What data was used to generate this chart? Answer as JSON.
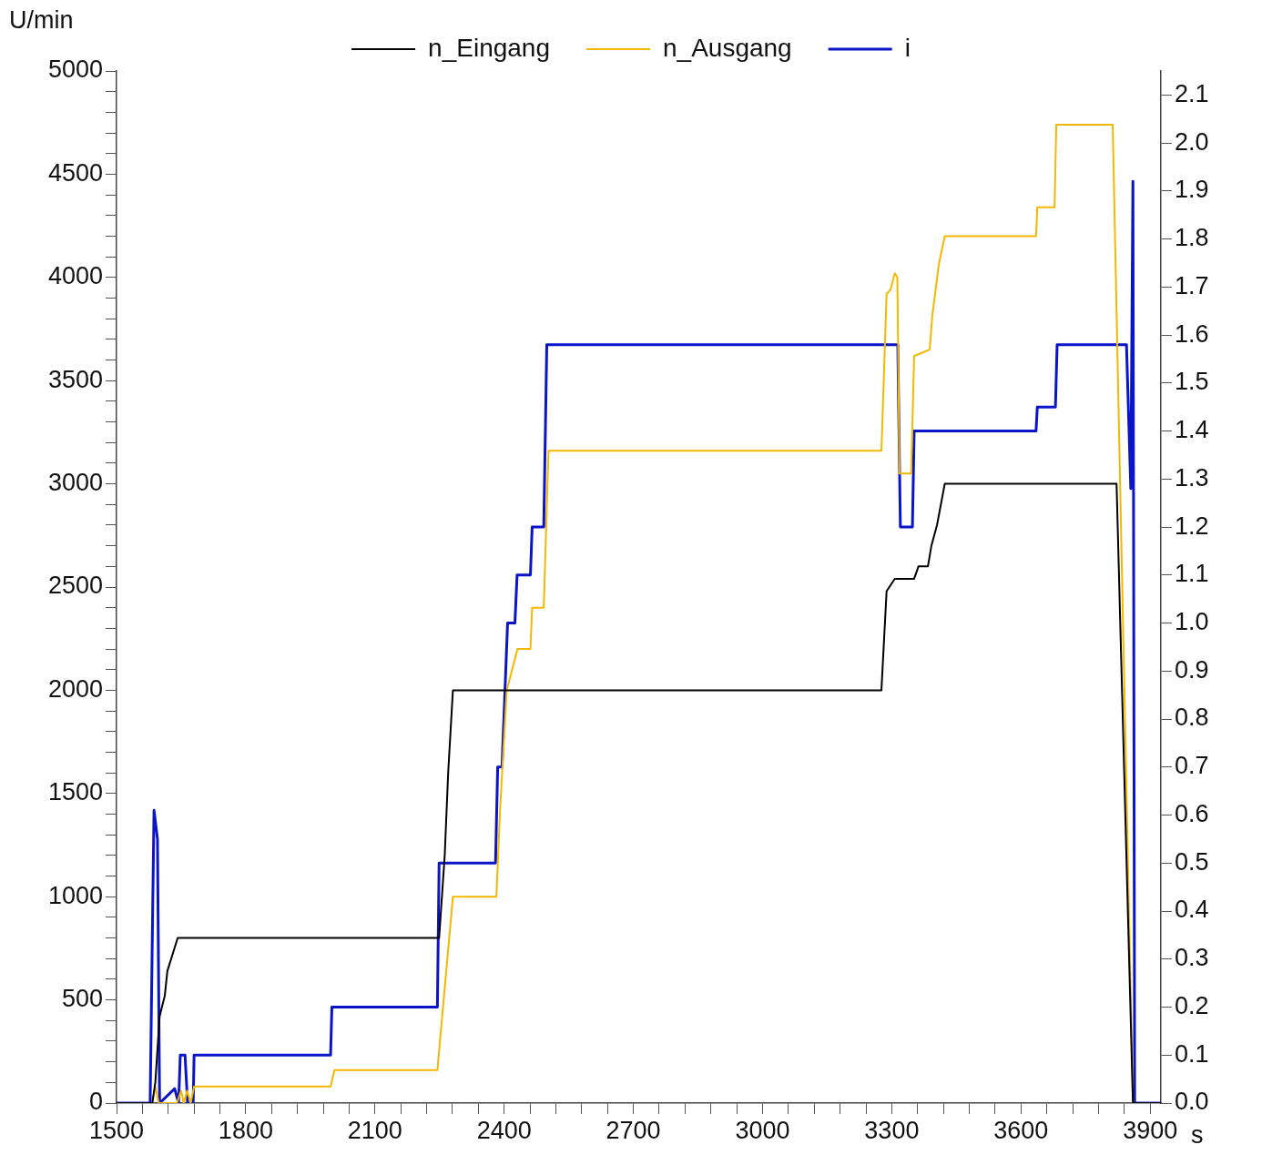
{
  "chart_data": {
    "type": "line",
    "xlabel": "s",
    "ylabel": "U/min",
    "legend": "top",
    "marker": "none",
    "line_style": "solid",
    "xlim": [
      1500,
      3925
    ],
    "ylim": [
      0,
      5000
    ],
    "y2lim": [
      0,
      2.15
    ],
    "xticks": [
      1500,
      {
        "value": 1560,
        "label": null
      },
      {
        "value": 1620,
        "label": null
      },
      {
        "value": 1680,
        "label": null
      },
      {
        "value": 1740,
        "label": null
      },
      1800,
      {
        "value": 1860,
        "label": null
      },
      {
        "value": 1920,
        "label": null
      },
      {
        "value": 1980,
        "label": null
      },
      {
        "value": 2040,
        "label": null
      },
      2100,
      {
        "value": 2160,
        "label": null
      },
      {
        "value": 2220,
        "label": null
      },
      {
        "value": 2280,
        "label": null
      },
      {
        "value": 2340,
        "label": null
      },
      2400,
      {
        "value": 2460,
        "label": null
      },
      {
        "value": 2520,
        "label": null
      },
      {
        "value": 2580,
        "label": null
      },
      {
        "value": 2640,
        "label": null
      },
      2700,
      {
        "value": 2760,
        "label": null
      },
      {
        "value": 2820,
        "label": null
      },
      {
        "value": 2880,
        "label": null
      },
      {
        "value": 2940,
        "label": null
      },
      3000,
      {
        "value": 3060,
        "label": null
      },
      {
        "value": 3120,
        "label": null
      },
      {
        "value": 3180,
        "label": null
      },
      {
        "value": 3240,
        "label": null
      },
      3300,
      {
        "value": 3360,
        "label": null
      },
      {
        "value": 3420,
        "label": null
      },
      {
        "value": 3480,
        "label": null
      },
      {
        "value": 3540,
        "label": null
      },
      3600,
      {
        "value": 3660,
        "label": null
      },
      {
        "value": 3720,
        "label": null
      },
      {
        "value": 3780,
        "label": null
      },
      {
        "value": 3840,
        "label": null
      },
      3900
    ],
    "yticks": [
      0,
      {
        "value": 100,
        "label": null
      },
      {
        "value": 200,
        "label": null
      },
      {
        "value": 300,
        "label": null
      },
      {
        "value": 400,
        "label": null
      },
      500,
      {
        "value": 600,
        "label": null
      },
      {
        "value": 700,
        "label": null
      },
      {
        "value": 800,
        "label": null
      },
      {
        "value": 900,
        "label": null
      },
      1000,
      {
        "value": 1100,
        "label": null
      },
      {
        "value": 1200,
        "label": null
      },
      {
        "value": 1300,
        "label": null
      },
      {
        "value": 1400,
        "label": null
      },
      1500,
      {
        "value": 1600,
        "label": null
      },
      {
        "value": 1700,
        "label": null
      },
      {
        "value": 1800,
        "label": null
      },
      {
        "value": 1900,
        "label": null
      },
      2000,
      {
        "value": 2100,
        "label": null
      },
      {
        "value": 2200,
        "label": null
      },
      {
        "value": 2300,
        "label": null
      },
      {
        "value": 2400,
        "label": null
      },
      2500,
      {
        "value": 2600,
        "label": null
      },
      {
        "value": 2700,
        "label": null
      },
      {
        "value": 2800,
        "label": null
      },
      {
        "value": 2900,
        "label": null
      },
      3000,
      {
        "value": 3100,
        "label": null
      },
      {
        "value": 3200,
        "label": null
      },
      {
        "value": 3300,
        "label": null
      },
      {
        "value": 3400,
        "label": null
      },
      3500,
      {
        "value": 3600,
        "label": null
      },
      {
        "value": 3700,
        "label": null
      },
      {
        "value": 3800,
        "label": null
      },
      {
        "value": 3900,
        "label": null
      },
      4000,
      {
        "value": 4100,
        "label": null
      },
      {
        "value": 4200,
        "label": null
      },
      {
        "value": 4300,
        "label": null
      },
      {
        "value": 4400,
        "label": null
      },
      4500,
      {
        "value": 4600,
        "label": null
      },
      {
        "value": 4700,
        "label": null
      },
      {
        "value": 4800,
        "label": null
      },
      {
        "value": 4900,
        "label": null
      },
      5000
    ],
    "y2ticks": [
      {
        "value": 0,
        "label": "0.0"
      },
      0.1,
      0.2,
      0.3,
      0.4,
      0.5,
      0.6,
      0.7,
      0.8,
      0.9,
      {
        "value": 1,
        "label": "1.0"
      },
      1.1,
      1.2,
      1.3,
      1.4,
      1.5,
      1.6,
      1.7,
      1.8,
      1.9,
      {
        "value": 2,
        "label": "2.0"
      },
      2.1
    ],
    "series": [
      {
        "name": "n_Eingang",
        "color": "#000000",
        "x": [
          1500,
          1583,
          1590,
          1600,
          1612,
          1618,
          1642,
          2249,
          2262,
          2270,
          2281,
          3276,
          3288,
          3307,
          3352,
          3362,
          3384,
          3392,
          3405,
          3415,
          3423,
          3822,
          3860,
          3925
        ],
        "values": [
          0,
          0,
          100,
          420,
          520,
          640,
          800,
          800,
          1200,
          1600,
          2000,
          2000,
          2480,
          2540,
          2540,
          2600,
          2600,
          2700,
          2800,
          2910,
          3000,
          3000,
          0,
          0
        ]
      },
      {
        "name": "n_Ausgang",
        "color": "#f5b800",
        "x": [
          1500,
          1583,
          1590,
          1598,
          1640,
          1650,
          1656,
          1664,
          1672,
          1680,
          1997,
          2006,
          2245,
          2281,
          2382,
          2390,
          2406,
          2431,
          2461,
          2465,
          2492,
          2503,
          3276,
          3288,
          3297,
          3307,
          3313,
          3318,
          3345,
          3352,
          3388,
          3394,
          3409,
          3423,
          3635,
          3638,
          3678,
          3682,
          3813,
          3860,
          3925
        ],
        "values": [
          0,
          0,
          80,
          0,
          0,
          60,
          0,
          60,
          0,
          80,
          80,
          160,
          160,
          1000,
          1000,
          1400,
          2000,
          2200,
          2200,
          2400,
          2400,
          3160,
          3160,
          3920,
          3940,
          4020,
          4000,
          3050,
          3050,
          3620,
          3650,
          3810,
          4060,
          4200,
          4200,
          4340,
          4340,
          4740,
          4740,
          0,
          0
        ]
      },
      {
        "name": "i",
        "color": "#0a14c8",
        "axis": "y2",
        "x": [
          1500,
          1578,
          1587,
          1595,
          1600,
          1635,
          1644,
          1648,
          1659,
          1665,
          1678,
          1680,
          1997,
          2000,
          2245,
          2249,
          2380,
          2385,
          2395,
          2408,
          2425,
          2430,
          2461,
          2465,
          2492,
          2499,
          3314,
          3320,
          3348,
          3352,
          3635,
          3638,
          3680,
          3684,
          3845,
          3855,
          3860,
          3864,
          3925
        ],
        "values": [
          0,
          0,
          0.61,
          0.55,
          0,
          0.03,
          0,
          0.1,
          0.1,
          0,
          0,
          0.1,
          0.1,
          0.2,
          0.2,
          0.5,
          0.5,
          0.7,
          0.7,
          1.0,
          1.0,
          1.1,
          1.1,
          1.2,
          1.2,
          1.58,
          1.58,
          1.2,
          1.2,
          1.4,
          1.4,
          1.45,
          1.45,
          1.58,
          1.58,
          1.28,
          1.92,
          0,
          0
        ]
      }
    ]
  }
}
